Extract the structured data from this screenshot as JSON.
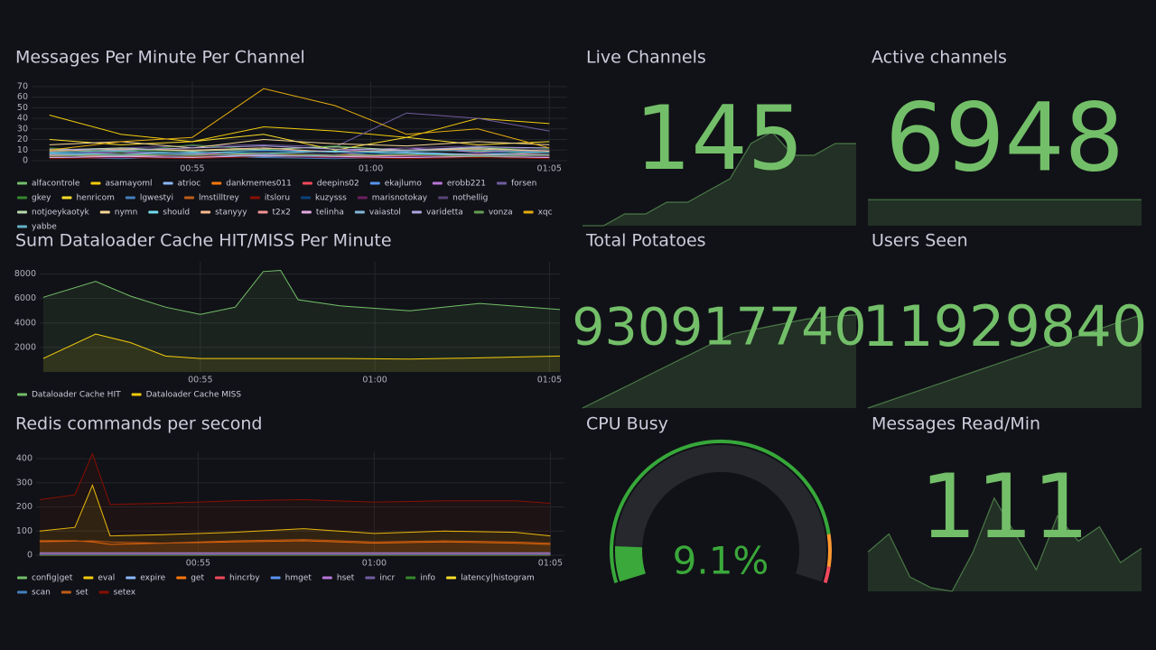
{
  "chart_data": [
    {
      "type": "line",
      "title": "Messages Per Minute Per Channel",
      "x": [
        51,
        53,
        55,
        57,
        59,
        61,
        63,
        65
      ],
      "xlim": [
        50.5,
        65.5
      ],
      "xticks": [
        {
          "value": 55,
          "label": "00:55"
        },
        {
          "value": 60,
          "label": "01:00"
        },
        {
          "value": 65,
          "label": "01:05"
        }
      ],
      "ylim": [
        0,
        75
      ],
      "yticks": [
        0,
        10,
        20,
        30,
        40,
        50,
        60,
        70
      ],
      "grid": true,
      "fill": false,
      "series": [
        {
          "name": "alfacontrole",
          "color": "#73bf69",
          "values": [
            8,
            10,
            9,
            12,
            8,
            10,
            9,
            8
          ]
        },
        {
          "name": "asamayoml",
          "color": "#f2cc0c",
          "values": [
            43,
            25,
            18,
            32,
            28,
            22,
            40,
            35
          ]
        },
        {
          "name": "atrioc",
          "color": "#8ab8ff",
          "values": [
            5,
            6,
            7,
            5,
            6,
            8,
            6,
            5
          ]
        },
        {
          "name": "dankmemes011",
          "color": "#ff780a",
          "values": [
            3,
            4,
            5,
            4,
            3,
            4,
            5,
            4
          ]
        },
        {
          "name": "deepins02",
          "color": "#f2495c",
          "values": [
            6,
            5,
            7,
            6,
            5,
            6,
            7,
            6
          ]
        },
        {
          "name": "ekajlumo",
          "color": "#5794f2",
          "values": [
            4,
            5,
            4,
            6,
            5,
            4,
            5,
            4
          ]
        },
        {
          "name": "erobb221",
          "color": "#b877d9",
          "values": [
            7,
            8,
            6,
            10,
            9,
            12,
            8,
            10
          ]
        },
        {
          "name": "forsen",
          "color": "#705da0",
          "values": [
            10,
            12,
            14,
            15,
            13,
            45,
            40,
            28
          ]
        },
        {
          "name": "gkey",
          "color": "#37872d",
          "values": [
            12,
            8,
            15,
            10,
            14,
            9,
            12,
            11
          ]
        },
        {
          "name": "henricom",
          "color": "#fade2a",
          "values": [
            20,
            15,
            18,
            25,
            10,
            22,
            15,
            18
          ]
        },
        {
          "name": "lgwestyi",
          "color": "#447ebc",
          "values": [
            3,
            2,
            4,
            3,
            2,
            3,
            4,
            3
          ]
        },
        {
          "name": "lmstilltrey",
          "color": "#c15c17",
          "values": [
            5,
            6,
            4,
            5,
            6,
            5,
            4,
            5
          ]
        },
        {
          "name": "itsloru",
          "color": "#890f02",
          "values": [
            2,
            3,
            2,
            4,
            3,
            2,
            3,
            2
          ]
        },
        {
          "name": "kuzysss",
          "color": "#0a437c",
          "values": [
            8,
            6,
            7,
            9,
            8,
            6,
            7,
            8
          ]
        },
        {
          "name": "marisnotokay",
          "color": "#6d1f62",
          "values": [
            4,
            3,
            5,
            4,
            3,
            4,
            5,
            4
          ]
        },
        {
          "name": "nothellig",
          "color": "#584477",
          "values": [
            6,
            7,
            5,
            8,
            6,
            12,
            14,
            10
          ]
        },
        {
          "name": "notjoeykaotyk",
          "color": "#b7dbab",
          "values": [
            10,
            12,
            9,
            11,
            13,
            10,
            12,
            9
          ]
        },
        {
          "name": "nymn",
          "color": "#f4d598",
          "values": [
            15,
            18,
            12,
            20,
            16,
            14,
            18,
            15
          ]
        },
        {
          "name": "should",
          "color": "#70dbed",
          "values": [
            7,
            6,
            8,
            7,
            9,
            7,
            6,
            8
          ]
        },
        {
          "name": "stanyyy",
          "color": "#f9ba8f",
          "values": [
            9,
            11,
            10,
            12,
            8,
            10,
            11,
            9
          ]
        },
        {
          "name": "t2x2",
          "color": "#f29191",
          "values": [
            5,
            4,
            6,
            5,
            4,
            5,
            6,
            5
          ]
        },
        {
          "name": "telinha",
          "color": "#e5a8e2",
          "values": [
            3,
            4,
            3,
            5,
            4,
            3,
            4,
            3
          ]
        },
        {
          "name": "vaiastol",
          "color": "#82b5d8",
          "values": [
            6,
            5,
            6,
            4,
            5,
            6,
            5,
            6
          ]
        },
        {
          "name": "varidetta",
          "color": "#aea2e0",
          "values": [
            11,
            10,
            12,
            14,
            11,
            10,
            13,
            12
          ]
        },
        {
          "name": "vonza",
          "color": "#629e51",
          "values": [
            4,
            6,
            5,
            7,
            5,
            6,
            4,
            5
          ]
        },
        {
          "name": "xqc",
          "color": "#e5ac0e",
          "values": [
            10,
            18,
            22,
            68,
            52,
            25,
            30,
            12
          ]
        },
        {
          "name": "yabbe",
          "color": "#64b0c8",
          "values": [
            8,
            9,
            7,
            10,
            8,
            9,
            10,
            8
          ]
        }
      ]
    },
    {
      "type": "stat",
      "title": "Live Channels",
      "value": 145,
      "color": "#73bf69",
      "sparkline": [
        137,
        137,
        138,
        138,
        139,
        139,
        140,
        141,
        144,
        145,
        143,
        143,
        144,
        144
      ]
    },
    {
      "type": "stat",
      "title": "Active channels",
      "value": 6948,
      "color": "#73bf69",
      "sparkline": [
        6948,
        6948,
        6948,
        6948,
        6948,
        6948,
        6948,
        6948,
        6948,
        6948,
        6948,
        6948
      ]
    },
    {
      "type": "line",
      "title": "Sum Dataloader Cache HIT/MISS Per Minute",
      "x": [
        50.5,
        52,
        53,
        54,
        55,
        56,
        56.8,
        57.3,
        57.8,
        59,
        61,
        63,
        65.3
      ],
      "xlim": [
        50.4,
        65.3
      ],
      "xticks": [
        {
          "value": 55,
          "label": "00:55"
        },
        {
          "value": 60,
          "label": "01:00"
        },
        {
          "value": 65,
          "label": "01:05"
        }
      ],
      "ylim": [
        0,
        9000
      ],
      "yticks": [
        2000,
        4000,
        6000,
        8000
      ],
      "grid": true,
      "fill": true,
      "series": [
        {
          "name": "Dataloader Cache HIT",
          "color": "#73bf69",
          "values": [
            6100,
            7400,
            6200,
            5300,
            4700,
            5300,
            8200,
            8300,
            5900,
            5400,
            5000,
            5600,
            5100
          ]
        },
        {
          "name": "Dataloader Cache MISS",
          "color": "#f2cc0c",
          "values": [
            1100,
            3100,
            2400,
            1300,
            1100,
            1100,
            1100,
            1100,
            1100,
            1100,
            1050,
            1150,
            1300
          ]
        }
      ]
    },
    {
      "type": "stat",
      "title": "Total Potatoes",
      "value": 930917740,
      "color": "#73bf69",
      "sparkline": [
        930880000,
        930885000,
        930890000,
        930895000,
        930900000,
        930905000,
        930910000,
        930912000,
        930914000,
        930916000,
        930917000,
        930917740
      ]
    },
    {
      "type": "stat",
      "title": "Users Seen",
      "value": 11929840,
      "color": "#73bf69",
      "sparkline": [
        11880000,
        11885000,
        11890000,
        11895000,
        11900000,
        11905000,
        11910000,
        11915000,
        11920000,
        11925000,
        11929840
      ]
    },
    {
      "type": "line",
      "title": "Redis commands per second",
      "x": [
        50.5,
        51.5,
        52,
        52.5,
        54,
        56,
        58,
        60,
        62,
        64,
        65
      ],
      "xlim": [
        50.4,
        65.4
      ],
      "xticks": [
        {
          "value": 55,
          "label": "00:55"
        },
        {
          "value": 60,
          "label": "01:00"
        },
        {
          "value": 65,
          "label": "01:05"
        }
      ],
      "ylim": [
        0,
        430
      ],
      "yticks": [
        0,
        100,
        200,
        300,
        400
      ],
      "grid": true,
      "fill": true,
      "series": [
        {
          "name": "config|get",
          "color": "#73bf69",
          "values": [
            2,
            2,
            2,
            2,
            2,
            2,
            2,
            2,
            2,
            2,
            2
          ]
        },
        {
          "name": "eval",
          "color": "#f2cc0c",
          "values": [
            100,
            115,
            290,
            80,
            85,
            95,
            110,
            90,
            100,
            95,
            80
          ]
        },
        {
          "name": "expire",
          "color": "#8ab8ff",
          "values": [
            5,
            5,
            5,
            5,
            5,
            5,
            5,
            5,
            5,
            5,
            5
          ]
        },
        {
          "name": "get",
          "color": "#ff780a",
          "values": [
            60,
            60,
            55,
            45,
            50,
            55,
            60,
            50,
            55,
            50,
            45
          ]
        },
        {
          "name": "hincrby",
          "color": "#f2495c",
          "values": [
            3,
            3,
            3,
            3,
            3,
            3,
            3,
            3,
            3,
            3,
            3
          ]
        },
        {
          "name": "hmget",
          "color": "#5794f2",
          "values": [
            10,
            10,
            10,
            10,
            10,
            10,
            10,
            10,
            10,
            10,
            10
          ]
        },
        {
          "name": "hset",
          "color": "#b877d9",
          "values": [
            8,
            8,
            8,
            8,
            8,
            8,
            8,
            8,
            8,
            8,
            8
          ]
        },
        {
          "name": "incr",
          "color": "#705da0",
          "values": [
            4,
            4,
            4,
            4,
            4,
            4,
            4,
            4,
            4,
            4,
            4
          ]
        },
        {
          "name": "info",
          "color": "#37872d",
          "values": [
            1,
            1,
            1,
            1,
            1,
            1,
            1,
            1,
            1,
            1,
            1
          ]
        },
        {
          "name": "latency|histogram",
          "color": "#fade2a",
          "values": [
            1,
            1,
            1,
            1,
            1,
            1,
            1,
            1,
            1,
            1,
            1
          ]
        },
        {
          "name": "scan",
          "color": "#447ebc",
          "values": [
            2,
            2,
            2,
            2,
            2,
            2,
            2,
            2,
            2,
            2,
            2
          ]
        },
        {
          "name": "set",
          "color": "#c15c17",
          "values": [
            55,
            58,
            60,
            55,
            50,
            60,
            65,
            55,
            60,
            55,
            50
          ]
        },
        {
          "name": "setex",
          "color": "#890f02",
          "values": [
            230,
            250,
            420,
            210,
            215,
            225,
            230,
            220,
            225,
            225,
            215
          ]
        }
      ]
    },
    {
      "type": "gauge",
      "title": "CPU Busy",
      "value": 9.1,
      "value_label": "9.1%",
      "color": "#3aa83a",
      "ylim": [
        0,
        100
      ],
      "thresholds": [
        {
          "value": 0,
          "color": "#37a83a"
        },
        {
          "value": 88,
          "color": "#ff9830"
        },
        {
          "value": 96,
          "color": "#f2495c"
        }
      ]
    },
    {
      "type": "stat",
      "title": "Messages Read/Min",
      "value": 111,
      "color": "#73bf69",
      "sparkline": [
        95,
        100,
        88,
        85,
        84,
        95,
        110,
        100,
        90,
        105,
        98,
        102,
        92,
        96
      ]
    }
  ]
}
